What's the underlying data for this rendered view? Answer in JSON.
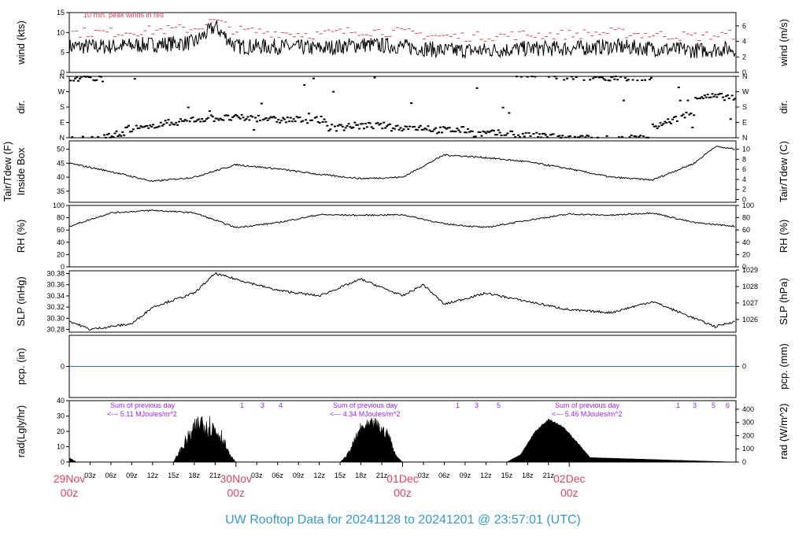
{
  "footer": {
    "title": "UW Rooftop Data for 20241128  to  20241201 @ 23:57:01  (UTC)"
  },
  "annotations": {
    "wind_note": "10 min. peak winds in red",
    "rad_notes": [
      {
        "line1": "Sum of previous day",
        "line2": "<--- 5.11 MJoules/m^2"
      },
      {
        "line1": "Sum of previous day",
        "line2": "<--- 4.34 MJoules/m^2"
      },
      {
        "line1": "Sum of previous day",
        "line2": "<--- 5.46 MJoules/m^2"
      }
    ],
    "uv_day1": [
      "1",
      "3",
      "4"
    ],
    "uv_day2": [
      "1",
      "3",
      "5"
    ],
    "uv_day3": [
      "1",
      "3",
      "5",
      "6"
    ]
  },
  "colors": {
    "red": "#e0405a",
    "purple": "#a020f0",
    "blue": "#3399cc",
    "pcp_line": "#3366cc"
  },
  "x_axis": {
    "hour_labels": [
      "03z",
      "06z",
      "09z",
      "12z",
      "15z",
      "18z",
      "21z",
      "03z",
      "06z",
      "09z",
      "12z",
      "15z",
      "18z",
      "21z",
      "03z",
      "06z",
      "09z",
      "12z",
      "15z",
      "18z",
      "21z"
    ],
    "day_labels": [
      {
        "line1": "29Nov",
        "line2": "00z"
      },
      {
        "line1": "30Nov",
        "line2": "00z"
      },
      {
        "line1": "01Dec",
        "line2": "00z"
      },
      {
        "line1": "02Dec",
        "line2": "00z"
      }
    ]
  },
  "panels": {
    "wind": {
      "left_title": "wind (kts)",
      "right_title": "wind (m/s)",
      "left_ticks": [
        "0",
        "5",
        "10",
        "15"
      ],
      "right_ticks": [
        "0",
        "2",
        "4",
        "6"
      ]
    },
    "dir": {
      "left_title": "dir.",
      "right_title": "dir.",
      "left_ticks": [
        "N",
        "E",
        "S",
        "W",
        "N"
      ],
      "right_ticks": [
        "N",
        "E",
        "S",
        "W",
        "N"
      ]
    },
    "temp": {
      "left_title_1": "Tair/Tdew (F)",
      "left_title_2": "Inside Box",
      "right_title": "Tair/Tdew (C)",
      "left_ticks": [
        "35",
        "40",
        "45",
        "50"
      ],
      "right_ticks": [
        "0",
        "2",
        "4",
        "6",
        "8",
        "10"
      ]
    },
    "rh": {
      "left_title": "RH (%)",
      "right_title": "RH (%)",
      "left_ticks": [
        "0",
        "20",
        "40",
        "60",
        "80",
        "100"
      ],
      "right_ticks": [
        "0",
        "20",
        "40",
        "60",
        "80",
        "100"
      ]
    },
    "slp": {
      "left_title": "SLP (inHg)",
      "right_title": "SLP (hPa)",
      "left_ticks": [
        "30.28",
        "30.30",
        "30.32",
        "30.34",
        "30.36",
        "30.38"
      ],
      "right_ticks": [
        "1026",
        "1027",
        "1028",
        "1029"
      ]
    },
    "pcp": {
      "left_title": "pcp. (in)",
      "right_title": "pcp. (mm)",
      "left_ticks": [
        "0"
      ],
      "right_ticks": [
        "0"
      ]
    },
    "rad": {
      "left_title": "rad(Lgly/hr)",
      "right_title": "rad (W/m^2)",
      "left_ticks": [
        "0",
        "10",
        "20",
        "30",
        "40"
      ],
      "right_ticks": [
        "0",
        "100",
        "200",
        "300",
        "400"
      ]
    }
  },
  "chart_data": [
    {
      "type": "line",
      "panel": "wind",
      "xlabel": "",
      "ylabel": "wind (kts)",
      "ylim": [
        0,
        15
      ],
      "x": [
        0,
        6,
        12,
        18,
        21,
        24,
        30,
        36,
        42,
        48,
        54,
        60,
        66,
        72,
        78,
        84,
        90,
        96
      ],
      "series": [
        {
          "values": [
            6.5,
            6.5,
            7.0,
            7.5,
            11.5,
            6.5,
            6.5,
            6.0,
            7.0,
            6.5,
            5.5,
            5.5,
            6.0,
            6.0,
            6.5,
            6.0,
            5.5,
            6.0
          ]
        },
        {
          "values": [
            10,
            10,
            10.5,
            11,
            13,
            10.5,
            10,
            9.5,
            10.5,
            10,
            9,
            9,
            9.5,
            9.5,
            10,
            9.5,
            9,
            9.5
          ]
        }
      ]
    },
    {
      "type": "scatter",
      "panel": "dir",
      "ylim": [
        0,
        360
      ],
      "x": [
        0,
        3,
        6,
        9,
        12,
        18,
        24,
        30,
        36,
        42,
        48,
        54,
        60,
        66,
        72,
        78,
        84,
        90,
        96
      ],
      "values": [
        340,
        350,
        30,
        70,
        80,
        100,
        120,
        110,
        105,
        70,
        70,
        60,
        40,
        20,
        10,
        360,
        350,
        240,
        260
      ]
    },
    {
      "type": "line",
      "panel": "temp",
      "xlabel": "",
      "ylabel": "Tair/Tdew (F)",
      "ylim": [
        31,
        53
      ],
      "x": [
        0,
        6,
        12,
        18,
        24,
        30,
        36,
        42,
        48,
        54,
        60,
        66,
        72,
        78,
        84,
        90,
        93,
        96
      ],
      "values": [
        45,
        42,
        38.5,
        40,
        44.5,
        43,
        41,
        39.5,
        40,
        48,
        47,
        45.5,
        43,
        40,
        39,
        45,
        51,
        50
      ]
    },
    {
      "type": "line",
      "panel": "rh",
      "xlabel": "",
      "ylabel": "RH (%)",
      "ylim": [
        0,
        100
      ],
      "x": [
        0,
        6,
        12,
        18,
        24,
        30,
        36,
        42,
        48,
        54,
        60,
        66,
        72,
        78,
        84,
        90,
        96
      ],
      "values": [
        66,
        88,
        92,
        88,
        64,
        72,
        85,
        84,
        85,
        70,
        64,
        76,
        86,
        84,
        88,
        72,
        66
      ]
    },
    {
      "type": "line",
      "panel": "slp",
      "xlabel": "",
      "ylabel": "SLP (inHg)",
      "ylim": [
        30.275,
        30.385
      ],
      "x": [
        0,
        3,
        6,
        9,
        12,
        18,
        21,
        24,
        30,
        36,
        42,
        48,
        51,
        54,
        60,
        66,
        72,
        78,
        84,
        90,
        93,
        96
      ],
      "values": [
        30.295,
        30.28,
        30.285,
        30.29,
        30.32,
        30.345,
        30.38,
        30.37,
        30.35,
        30.34,
        30.37,
        30.34,
        30.36,
        30.325,
        30.345,
        30.33,
        30.315,
        30.31,
        30.33,
        30.3,
        30.285,
        30.295
      ]
    },
    {
      "type": "line",
      "panel": "pcp",
      "xlabel": "",
      "ylabel": "pcp. (in)",
      "x": [
        0,
        96
      ],
      "values": [
        0,
        0
      ]
    },
    {
      "type": "area",
      "panel": "rad",
      "xlabel": "",
      "ylabel": "rad(Lgly/hr)",
      "ylim": [
        0,
        40
      ],
      "x": [
        0,
        0.5,
        1,
        15,
        17,
        19,
        20.5,
        22,
        23,
        24,
        39,
        40,
        42,
        44,
        46,
        47,
        48,
        63,
        65,
        67,
        69,
        71,
        73,
        75,
        96
      ],
      "values": [
        3,
        2,
        0,
        0,
        18,
        32,
        28,
        20,
        6,
        0,
        0,
        5,
        25,
        28,
        20,
        5,
        0,
        0,
        5,
        20,
        29,
        24,
        14,
        3,
        0
      ]
    }
  ]
}
